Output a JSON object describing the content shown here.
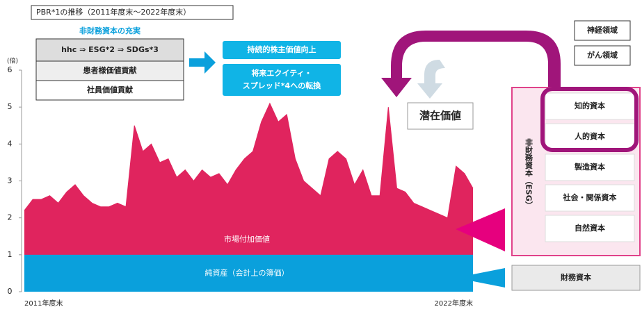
{
  "chart_data": {
    "type": "area",
    "title": "PBR*1の推移（2011年度末～2022年度末）",
    "y_unit": "(倍)",
    "categories": [
      "2011年度末",
      null,
      null,
      null,
      null,
      null,
      null,
      null,
      null,
      null,
      null,
      null,
      null,
      null,
      null,
      null,
      null,
      null,
      null,
      null,
      null,
      null,
      null,
      null,
      null,
      null,
      null,
      null,
      null,
      null,
      null,
      null,
      null,
      null,
      null,
      null,
      null,
      null,
      null,
      null,
      null,
      null,
      null,
      null,
      null,
      null,
      null,
      null,
      null,
      null,
      null,
      null,
      null,
      "2022年度末"
    ],
    "series": [
      {
        "name": "市場付加価値",
        "color": "#e0245e",
        "values": [
          2.2,
          2.5,
          2.5,
          2.6,
          2.4,
          2.7,
          2.9,
          2.6,
          2.4,
          2.3,
          2.3,
          2.4,
          2.3,
          4.5,
          3.8,
          4.0,
          3.5,
          3.6,
          3.1,
          3.3,
          3.0,
          3.3,
          3.1,
          3.2,
          2.9,
          3.3,
          3.6,
          3.8,
          4.6,
          5.1,
          4.6,
          4.8,
          3.6,
          3.0,
          2.8,
          2.6,
          3.6,
          3.8,
          3.6,
          2.9,
          3.3,
          2.6,
          2.6,
          5.0,
          2.8,
          2.7,
          2.4,
          2.3,
          2.2,
          2.1,
          2.0,
          3.4,
          3.2,
          2.8
        ]
      }
    ],
    "book_value": {
      "name": "純資産（会計上の簿価）",
      "color": "#0aa0dc",
      "value": 1
    },
    "ylim": [
      0,
      6
    ],
    "yticks": [
      0,
      1,
      2,
      3,
      4,
      5,
      6
    ]
  },
  "diagram": {
    "heading": "非財務資本の充実",
    "rows": [
      "hhc ⇒ ESG*2 ⇒ SDGs*3",
      "患者様価値貢献",
      "社員価値貢献"
    ],
    "goal1": "持続的株主価値向上",
    "goal2": [
      "将来エクイティ・",
      "スプレッド*4への転換"
    ],
    "latent": "潜在価値",
    "domains": [
      "神経領域",
      "がん領域"
    ],
    "nonfinancial": "非財務資本（ESG）",
    "capitals": [
      "知的資本",
      "人的資本",
      "製造資本",
      "社会・関係資本",
      "自然資本"
    ],
    "financial": "財務資本"
  }
}
